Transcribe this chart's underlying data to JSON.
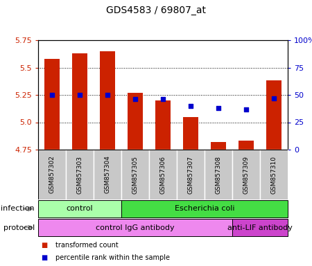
{
  "title": "GDS4583 / 69807_at",
  "categories": [
    "GSM857302",
    "GSM857303",
    "GSM857304",
    "GSM857305",
    "GSM857306",
    "GSM857307",
    "GSM857308",
    "GSM857309",
    "GSM857310"
  ],
  "transformed_counts": [
    5.58,
    5.63,
    5.65,
    5.27,
    5.2,
    5.05,
    4.82,
    4.83,
    5.38
  ],
  "percentile_ranks": [
    50,
    50,
    50,
    46,
    46,
    40,
    38,
    37,
    47
  ],
  "ylim_left": [
    4.75,
    5.75
  ],
  "ylim_right": [
    0,
    100
  ],
  "yticks_left": [
    4.75,
    5.0,
    5.25,
    5.5,
    5.75
  ],
  "yticks_right": [
    0,
    25,
    50,
    75,
    100
  ],
  "bar_color": "#cc2200",
  "dot_color": "#0000cc",
  "sample_bg_color": "#c8c8c8",
  "plot_bg": "#ffffff",
  "infection_labels": [
    {
      "text": "control",
      "start": 0,
      "end": 3,
      "color": "#aaffaa"
    },
    {
      "text": "Escherichia coli",
      "start": 3,
      "end": 9,
      "color": "#44dd44"
    }
  ],
  "protocol_labels": [
    {
      "text": "control IgG antibody",
      "start": 0,
      "end": 7,
      "color": "#ee88ee"
    },
    {
      "text": "anti-LIF antibody",
      "start": 7,
      "end": 9,
      "color": "#cc44cc"
    }
  ],
  "infection_row_label": "infection",
  "protocol_row_label": "protocol",
  "legend_items": [
    {
      "color": "#cc2200",
      "label": "transformed count"
    },
    {
      "color": "#0000cc",
      "label": "percentile rank within the sample"
    }
  ],
  "left_axis_color": "#cc2200",
  "right_axis_color": "#0000cc",
  "bar_width": 0.55,
  "figsize": [
    4.5,
    3.84
  ],
  "dpi": 100
}
